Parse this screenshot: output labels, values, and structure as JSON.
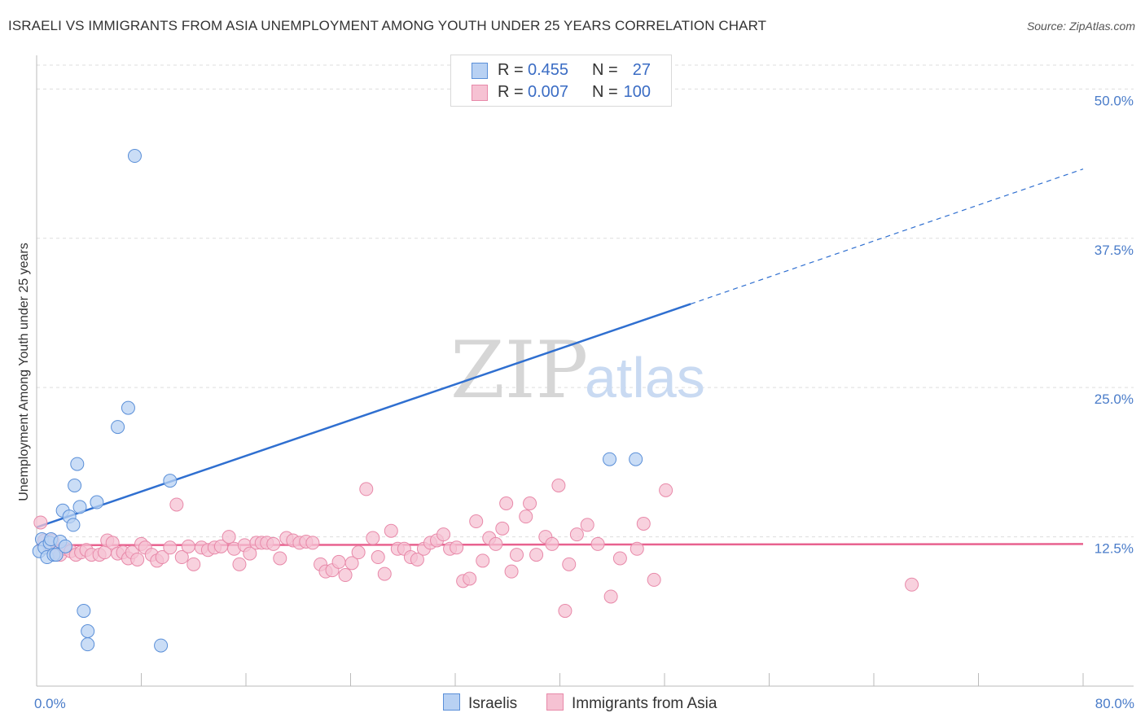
{
  "title": "ISRAELI VS IMMIGRANTS FROM ASIA UNEMPLOYMENT AMONG YOUTH UNDER 25 YEARS CORRELATION CHART",
  "source": "Source: ZipAtlas.com",
  "watermark": {
    "zip": "ZIP",
    "atlas": "atlas"
  },
  "colors": {
    "israelis_fill": "#b8d1f3",
    "israelis_stroke": "#5a8fd8",
    "israelis_line": "#2f6fd0",
    "asia_fill": "#f6c2d3",
    "asia_stroke": "#e889a9",
    "asia_line": "#e8628f",
    "grid": "#dddddd",
    "tick_text": "#4a7cc9"
  },
  "legend": {
    "rows": [
      {
        "r_label": "R =",
        "r_value": "0.455",
        "n_label": "N =",
        "n_value": "27"
      },
      {
        "r_label": "R =",
        "r_value": "0.007",
        "n_label": "N =",
        "n_value": "100"
      }
    ]
  },
  "chart_data": {
    "type": "scatter",
    "title": "ISRAELI VS IMMIGRANTS FROM ASIA UNEMPLOYMENT AMONG YOUTH UNDER 25 YEARS CORRELATION CHART",
    "xlabel": "",
    "ylabel": "Unemployment Among Youth under 25 years",
    "xlim": [
      0,
      80
    ],
    "ylim": [
      0,
      52
    ],
    "x_tick_labels": [
      "0.0%",
      "80.0%"
    ],
    "y_ticks": [
      12.5,
      25.0,
      37.5,
      50.0
    ],
    "y_tick_labels": [
      "12.5%",
      "25.0%",
      "37.5%",
      "50.0%"
    ],
    "grid": true,
    "legend_position": "top-center",
    "series": [
      {
        "name": "Israelis",
        "R": 0.455,
        "N": 27,
        "trend": {
          "x0": 0,
          "y0": 13.3,
          "x1": 50,
          "y1": 32.0,
          "dashed_to_x": 80,
          "dashed_to_y": 43.3
        },
        "points": [
          [
            0.2,
            11.3
          ],
          [
            0.4,
            12.3
          ],
          [
            0.6,
            11.6
          ],
          [
            0.8,
            10.8
          ],
          [
            1.0,
            12.0
          ],
          [
            1.1,
            12.3
          ],
          [
            1.3,
            11.0
          ],
          [
            1.5,
            11.0
          ],
          [
            1.8,
            12.1
          ],
          [
            2.0,
            14.7
          ],
          [
            2.2,
            11.7
          ],
          [
            2.5,
            14.2
          ],
          [
            2.8,
            13.5
          ],
          [
            2.9,
            16.8
          ],
          [
            3.1,
            18.6
          ],
          [
            3.3,
            15.0
          ],
          [
            3.6,
            6.3
          ],
          [
            3.9,
            4.6
          ],
          [
            3.9,
            3.5
          ],
          [
            4.6,
            15.4
          ],
          [
            6.2,
            21.7
          ],
          [
            7.0,
            23.3
          ],
          [
            7.5,
            44.4
          ],
          [
            9.5,
            3.4
          ],
          [
            10.2,
            17.2
          ],
          [
            43.8,
            19.0
          ],
          [
            45.8,
            19.0
          ]
        ]
      },
      {
        "name": "Immigrants from Asia",
        "R": 0.007,
        "N": 100,
        "trend": {
          "x0": 0,
          "y0": 11.8,
          "x1": 80,
          "y1": 11.9
        },
        "points": [
          [
            0.3,
            13.7
          ],
          [
            0.6,
            12.2
          ],
          [
            1.0,
            11.6
          ],
          [
            1.2,
            12.2
          ],
          [
            1.5,
            11.2
          ],
          [
            1.8,
            11.0
          ],
          [
            2.2,
            11.5
          ],
          [
            2.6,
            11.3
          ],
          [
            3.0,
            11.0
          ],
          [
            3.4,
            11.2
          ],
          [
            3.8,
            11.4
          ],
          [
            4.2,
            11.0
          ],
          [
            4.8,
            11.0
          ],
          [
            5.2,
            11.2
          ],
          [
            5.4,
            12.2
          ],
          [
            5.8,
            12.0
          ],
          [
            6.2,
            11.1
          ],
          [
            6.6,
            11.2
          ],
          [
            7.0,
            10.7
          ],
          [
            7.3,
            11.2
          ],
          [
            7.7,
            10.6
          ],
          [
            8.0,
            11.9
          ],
          [
            8.3,
            11.6
          ],
          [
            8.8,
            11.0
          ],
          [
            9.2,
            10.5
          ],
          [
            9.6,
            10.8
          ],
          [
            10.2,
            11.6
          ],
          [
            10.7,
            15.2
          ],
          [
            11.1,
            10.8
          ],
          [
            11.6,
            11.7
          ],
          [
            12.0,
            10.2
          ],
          [
            12.6,
            11.6
          ],
          [
            13.1,
            11.4
          ],
          [
            13.6,
            11.6
          ],
          [
            14.1,
            11.7
          ],
          [
            14.7,
            12.5
          ],
          [
            15.1,
            11.5
          ],
          [
            15.5,
            10.2
          ],
          [
            15.9,
            11.8
          ],
          [
            16.3,
            11.1
          ],
          [
            16.8,
            12.0
          ],
          [
            17.2,
            12.0
          ],
          [
            17.6,
            12.0
          ],
          [
            18.1,
            11.9
          ],
          [
            18.6,
            10.7
          ],
          [
            19.1,
            12.4
          ],
          [
            19.6,
            12.2
          ],
          [
            20.1,
            12.0
          ],
          [
            20.6,
            12.1
          ],
          [
            21.1,
            12.0
          ],
          [
            21.7,
            10.2
          ],
          [
            22.1,
            9.6
          ],
          [
            22.6,
            9.7
          ],
          [
            23.1,
            10.4
          ],
          [
            23.6,
            9.3
          ],
          [
            24.1,
            10.3
          ],
          [
            24.6,
            11.2
          ],
          [
            25.2,
            16.5
          ],
          [
            25.7,
            12.4
          ],
          [
            26.1,
            10.8
          ],
          [
            26.6,
            9.4
          ],
          [
            27.1,
            13.0
          ],
          [
            27.6,
            11.5
          ],
          [
            28.1,
            11.5
          ],
          [
            28.6,
            10.8
          ],
          [
            29.1,
            10.6
          ],
          [
            29.6,
            11.5
          ],
          [
            30.1,
            12.0
          ],
          [
            30.6,
            12.2
          ],
          [
            31.1,
            12.7
          ],
          [
            31.6,
            11.5
          ],
          [
            32.1,
            11.6
          ],
          [
            32.6,
            8.8
          ],
          [
            33.1,
            9.0
          ],
          [
            33.6,
            13.8
          ],
          [
            34.1,
            10.5
          ],
          [
            34.6,
            12.4
          ],
          [
            35.1,
            11.9
          ],
          [
            35.6,
            13.2
          ],
          [
            35.9,
            15.3
          ],
          [
            36.3,
            9.6
          ],
          [
            36.7,
            11.0
          ],
          [
            37.4,
            14.2
          ],
          [
            37.7,
            15.3
          ],
          [
            38.2,
            11.0
          ],
          [
            38.9,
            12.5
          ],
          [
            39.4,
            11.9
          ],
          [
            39.9,
            16.8
          ],
          [
            40.4,
            6.3
          ],
          [
            40.7,
            10.2
          ],
          [
            41.3,
            12.7
          ],
          [
            42.1,
            13.5
          ],
          [
            42.9,
            11.9
          ],
          [
            43.9,
            7.5
          ],
          [
            44.6,
            10.7
          ],
          [
            45.9,
            11.5
          ],
          [
            46.4,
            13.6
          ],
          [
            47.2,
            8.9
          ],
          [
            48.1,
            16.4
          ],
          [
            66.9,
            8.5
          ]
        ]
      }
    ]
  }
}
